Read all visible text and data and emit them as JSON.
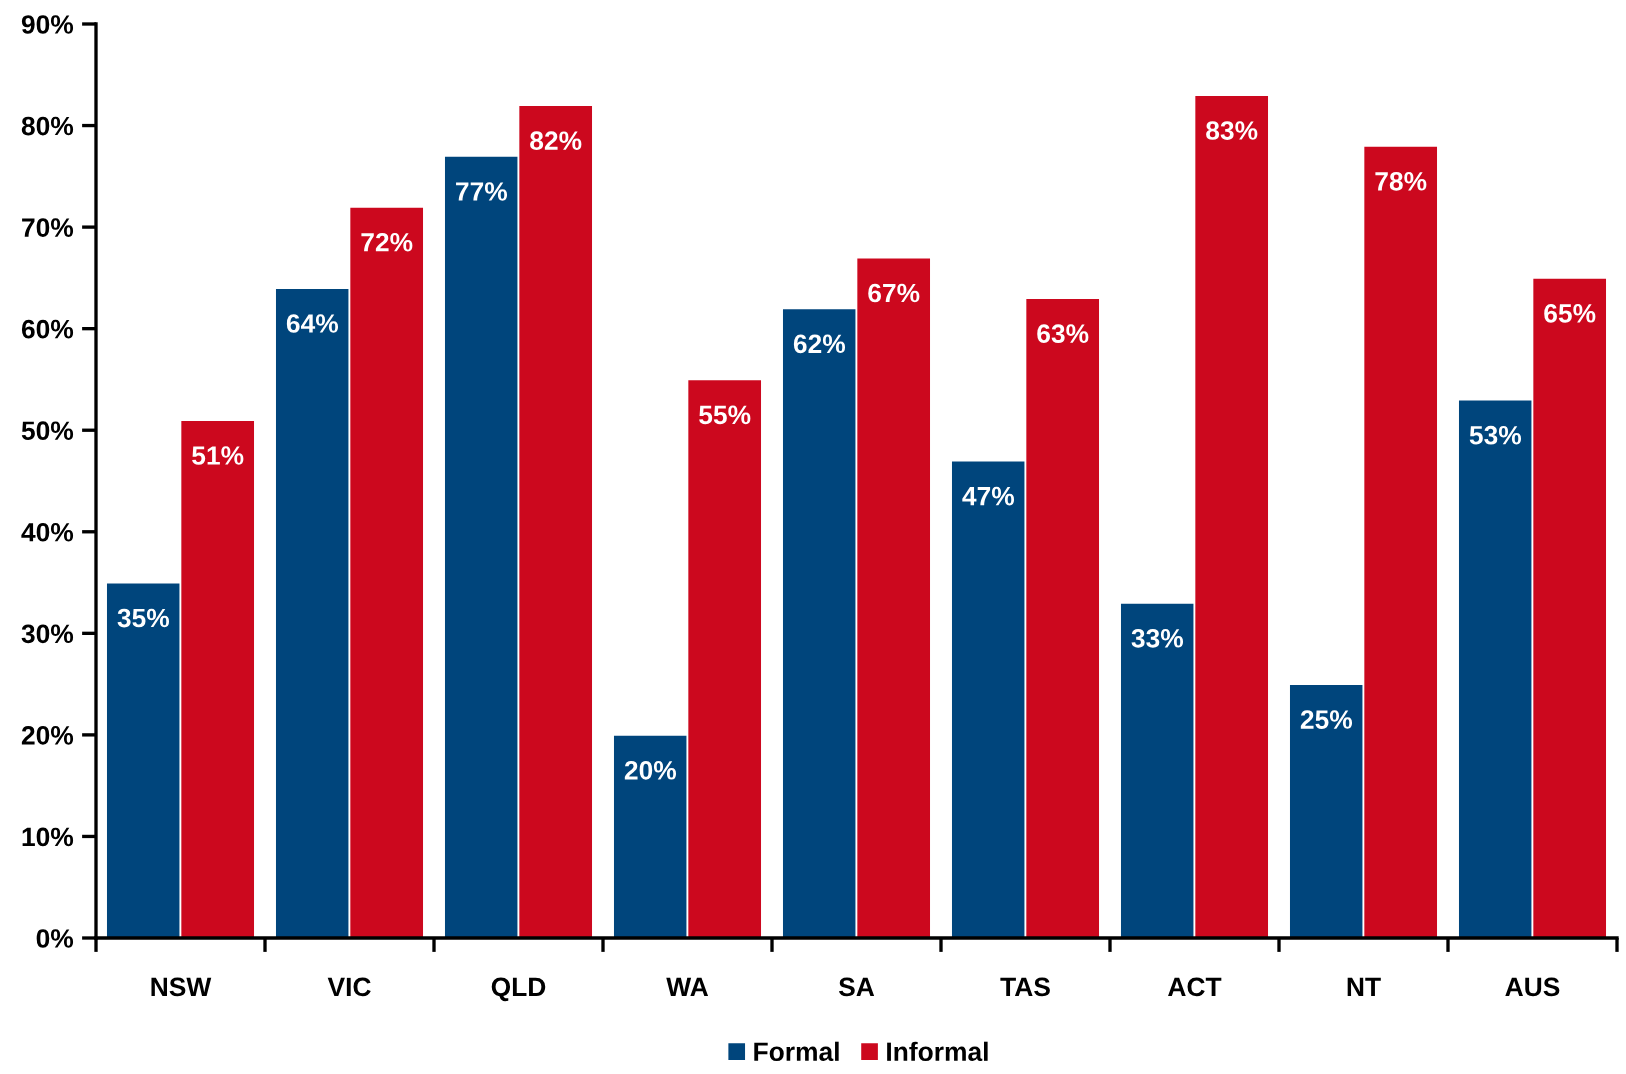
{
  "chart_data": {
    "type": "bar",
    "categories": [
      "NSW",
      "VIC",
      "QLD",
      "WA",
      "SA",
      "TAS",
      "ACT",
      "NT",
      "AUS"
    ],
    "series": [
      {
        "name": "Formal",
        "color": "#00457c",
        "values": [
          35,
          64,
          77,
          20,
          62,
          47,
          33,
          25,
          53
        ],
        "value_labels": [
          "35%",
          "64%",
          "77%",
          "20%",
          "62%",
          "47%",
          "33%",
          "25%",
          "53%"
        ]
      },
      {
        "name": "Informal",
        "color": "#cc081e",
        "values": [
          51,
          72,
          82,
          55,
          67,
          63,
          83,
          78,
          65
        ],
        "value_labels": [
          "51%",
          "72%",
          "82%",
          "55%",
          "67%",
          "63%",
          "83%",
          "78%",
          "65%"
        ]
      }
    ],
    "ylim": [
      0,
      90
    ],
    "yticks": [
      {
        "value": 0,
        "label": "0%"
      },
      {
        "value": 10,
        "label": "10%"
      },
      {
        "value": 20,
        "label": "20%"
      },
      {
        "value": 30,
        "label": "30%"
      },
      {
        "value": 40,
        "label": "40%"
      },
      {
        "value": 50,
        "label": "50%"
      },
      {
        "value": 60,
        "label": "60%"
      },
      {
        "value": 70,
        "label": "70%"
      },
      {
        "value": 80,
        "label": "80%"
      },
      {
        "value": 90,
        "label": "90%"
      }
    ],
    "grid": false,
    "legend": "bottom"
  }
}
